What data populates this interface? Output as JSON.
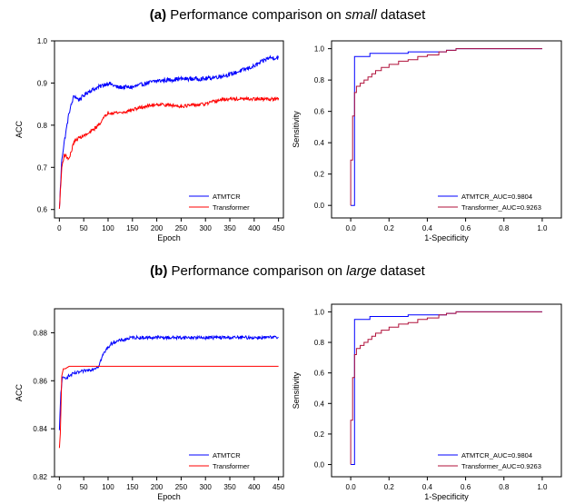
{
  "sections": [
    {
      "label": "(a)",
      "title_prefix": "Performance comparison on ",
      "title_emph": "small",
      "title_suffix": " dataset"
    },
    {
      "label": "(b)",
      "title_prefix": "Performance comparison on ",
      "title_emph": "large",
      "title_suffix": " dataset"
    }
  ],
  "colors": {
    "ATMTCR": "#0000ff",
    "Transformer": "#ff0000",
    "Transformer_dark": "#b0103a"
  },
  "chart_data": [
    {
      "id": "acc-small",
      "type": "line",
      "xlabel": "Epoch",
      "ylabel": "ACC",
      "xlim": [
        -10,
        460
      ],
      "ylim": [
        0.58,
        1.0
      ],
      "xticks": [
        0,
        50,
        100,
        150,
        200,
        250,
        300,
        350,
        400,
        450
      ],
      "yticks": [
        0.6,
        0.7,
        0.8,
        0.9,
        1.0
      ],
      "ytick_labels": [
        "0.6",
        "0.7",
        "0.8",
        "0.9",
        "1.0"
      ],
      "grid": false,
      "legend": "bottom-right",
      "series": [
        {
          "name": "ATMTCR",
          "color": "#0000ff",
          "noise": 0.005,
          "x": [
            0,
            5,
            10,
            20,
            30,
            40,
            60,
            80,
            100,
            120,
            150,
            180,
            200,
            250,
            300,
            350,
            400,
            430,
            450
          ],
          "y": [
            0.6,
            0.72,
            0.76,
            0.83,
            0.87,
            0.86,
            0.88,
            0.89,
            0.9,
            0.89,
            0.89,
            0.9,
            0.905,
            0.91,
            0.91,
            0.92,
            0.94,
            0.96,
            0.96
          ]
        },
        {
          "name": "Transformer",
          "color": "#ff0000",
          "noise": 0.004,
          "x": [
            0,
            5,
            10,
            20,
            30,
            40,
            60,
            80,
            100,
            130,
            160,
            200,
            250,
            300,
            330,
            350,
            450
          ],
          "y": [
            0.6,
            0.7,
            0.73,
            0.72,
            0.76,
            0.77,
            0.78,
            0.8,
            0.83,
            0.83,
            0.84,
            0.85,
            0.845,
            0.85,
            0.86,
            0.862,
            0.862
          ]
        }
      ]
    },
    {
      "id": "roc-small",
      "type": "line",
      "xlabel": "1-Specificity",
      "ylabel": "Sensitivity",
      "xlim": [
        -0.1,
        1.1
      ],
      "ylim": [
        -0.08,
        1.05
      ],
      "xticks": [
        0.0,
        0.2,
        0.4,
        0.6,
        0.8,
        1.0
      ],
      "xtick_labels": [
        "0.0",
        "0.2",
        "0.4",
        "0.6",
        "0.8",
        "1.0"
      ],
      "yticks": [
        0.0,
        0.2,
        0.4,
        0.6,
        0.8,
        1.0
      ],
      "ytick_labels": [
        "0.0",
        "0.2",
        "0.4",
        "0.6",
        "0.8",
        "1.0"
      ],
      "grid": false,
      "legend": "bottom-right",
      "series": [
        {
          "name": "ATMTCR_AUC=0.9804",
          "color": "#0000ff",
          "x": [
            0.0,
            0.0,
            0.02,
            0.02,
            0.1,
            0.1,
            0.3,
            0.3,
            0.5,
            0.5,
            0.55,
            0.55,
            1.0,
            1.0
          ],
          "y": [
            0.0,
            0.0,
            0.0,
            0.95,
            0.95,
            0.97,
            0.97,
            0.98,
            0.98,
            0.99,
            0.99,
            1.0,
            1.0,
            1.0
          ]
        },
        {
          "name": "Transformer_AUC=0.9263",
          "color": "#b0103a",
          "x": [
            0.0,
            0.0,
            0.01,
            0.01,
            0.02,
            0.02,
            0.03,
            0.03,
            0.05,
            0.05,
            0.07,
            0.07,
            0.09,
            0.09,
            0.11,
            0.11,
            0.13,
            0.13,
            0.16,
            0.16,
            0.2,
            0.2,
            0.25,
            0.25,
            0.3,
            0.3,
            0.35,
            0.35,
            0.4,
            0.4,
            0.46,
            0.46,
            0.5,
            0.5,
            0.55,
            0.55,
            1.0
          ],
          "y": [
            0.0,
            0.29,
            0.29,
            0.57,
            0.57,
            0.72,
            0.72,
            0.76,
            0.76,
            0.78,
            0.78,
            0.8,
            0.8,
            0.82,
            0.82,
            0.84,
            0.84,
            0.86,
            0.86,
            0.88,
            0.88,
            0.9,
            0.9,
            0.92,
            0.92,
            0.93,
            0.93,
            0.95,
            0.95,
            0.96,
            0.96,
            0.98,
            0.98,
            0.99,
            0.99,
            1.0,
            1.0
          ]
        }
      ]
    },
    {
      "id": "acc-large",
      "type": "line",
      "xlabel": "Epoch",
      "ylabel": "ACC",
      "xlim": [
        -10,
        460
      ],
      "ylim": [
        0.82,
        0.89
      ],
      "xticks": [
        0,
        50,
        100,
        150,
        200,
        250,
        300,
        350,
        400,
        450
      ],
      "yticks": [
        0.82,
        0.84,
        0.86,
        0.88
      ],
      "ytick_labels": [
        "0.82",
        "0.84",
        "0.86",
        "0.88"
      ],
      "grid": false,
      "legend": "bottom-right",
      "series": [
        {
          "name": "ATMTCR",
          "color": "#0000ff",
          "noise": 0.0007,
          "x": [
            0,
            3,
            6,
            10,
            20,
            30,
            50,
            70,
            80,
            90,
            100,
            110,
            130,
            150,
            200,
            250,
            300,
            350,
            400,
            450
          ],
          "y": [
            0.839,
            0.855,
            0.861,
            0.861,
            0.862,
            0.863,
            0.864,
            0.865,
            0.866,
            0.871,
            0.874,
            0.876,
            0.877,
            0.878,
            0.878,
            0.878,
            0.878,
            0.878,
            0.878,
            0.878
          ]
        },
        {
          "name": "Transformer",
          "color": "#ff0000",
          "noise": 0,
          "x": [
            0,
            2,
            5,
            8,
            12,
            20,
            30,
            40,
            50,
            450
          ],
          "y": [
            0.832,
            0.838,
            0.862,
            0.865,
            0.865,
            0.866,
            0.866,
            0.866,
            0.866,
            0.866
          ]
        }
      ]
    },
    {
      "id": "roc-large",
      "type": "line",
      "xlabel": "1-Specificity",
      "ylabel": "Sensitivity",
      "xlim": [
        -0.1,
        1.1
      ],
      "ylim": [
        -0.08,
        1.05
      ],
      "xticks": [
        0.0,
        0.2,
        0.4,
        0.6,
        0.8,
        1.0
      ],
      "xtick_labels": [
        "0.0",
        "0.2",
        "0.4",
        "0.6",
        "0.8",
        "1.0"
      ],
      "yticks": [
        0.0,
        0.2,
        0.4,
        0.6,
        0.8,
        1.0
      ],
      "ytick_labels": [
        "0.0",
        "0.2",
        "0.4",
        "0.6",
        "0.8",
        "1.0"
      ],
      "grid": false,
      "legend": "bottom-right",
      "series": [
        {
          "name": "ATMTCR_AUC=0.9804",
          "color": "#0000ff",
          "x": [
            0.0,
            0.0,
            0.02,
            0.02,
            0.1,
            0.1,
            0.3,
            0.3,
            0.5,
            0.5,
            0.55,
            0.55,
            1.0,
            1.0
          ],
          "y": [
            0.0,
            0.0,
            0.0,
            0.95,
            0.95,
            0.97,
            0.97,
            0.98,
            0.98,
            0.99,
            0.99,
            1.0,
            1.0,
            1.0
          ]
        },
        {
          "name": "Transformer_AUC=0.9263",
          "color": "#b0103a",
          "x": [
            0.0,
            0.0,
            0.01,
            0.01,
            0.02,
            0.02,
            0.03,
            0.03,
            0.05,
            0.05,
            0.07,
            0.07,
            0.09,
            0.09,
            0.11,
            0.11,
            0.13,
            0.13,
            0.16,
            0.16,
            0.2,
            0.2,
            0.25,
            0.25,
            0.3,
            0.3,
            0.35,
            0.35,
            0.4,
            0.4,
            0.46,
            0.46,
            0.5,
            0.5,
            0.55,
            0.55,
            1.0
          ],
          "y": [
            0.0,
            0.29,
            0.29,
            0.57,
            0.57,
            0.72,
            0.72,
            0.76,
            0.76,
            0.78,
            0.78,
            0.8,
            0.8,
            0.82,
            0.82,
            0.84,
            0.84,
            0.86,
            0.86,
            0.88,
            0.88,
            0.9,
            0.9,
            0.92,
            0.92,
            0.93,
            0.93,
            0.95,
            0.95,
            0.96,
            0.96,
            0.98,
            0.98,
            0.99,
            0.99,
            1.0,
            1.0
          ]
        }
      ]
    }
  ]
}
